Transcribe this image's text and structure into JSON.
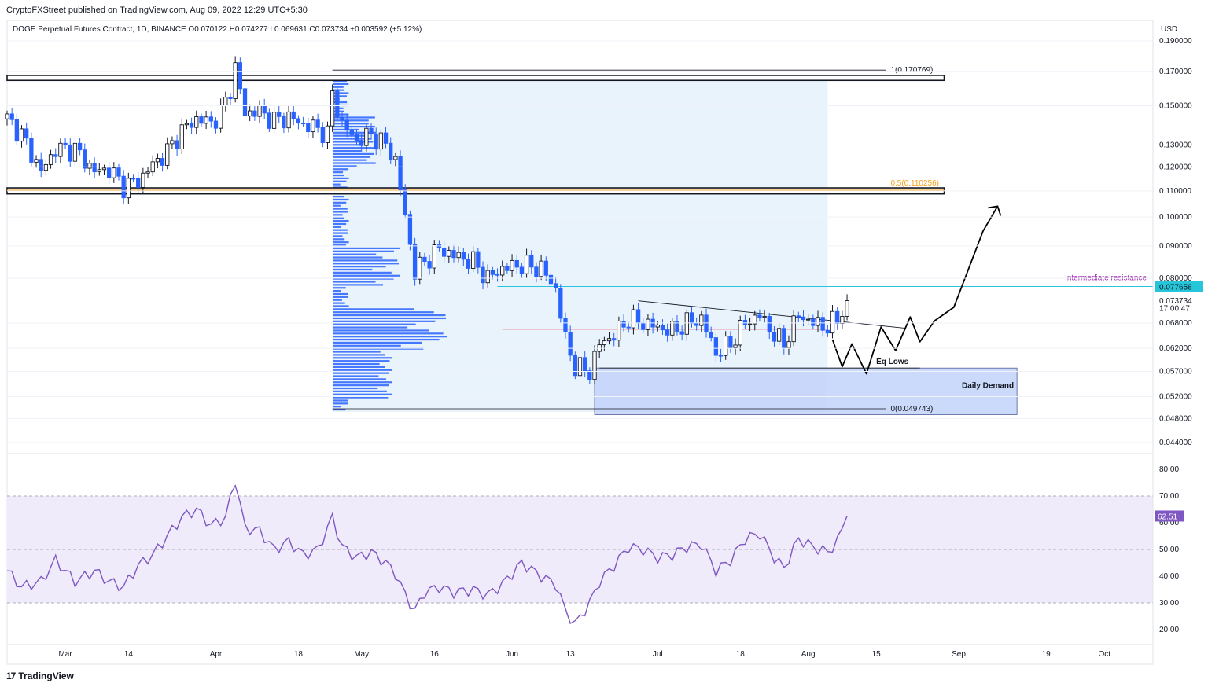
{
  "header": {
    "publisher": "CryptoFXStreet published on TradingView.com, Aug 09, 2022 12:29 UTC+5:30"
  },
  "legend": {
    "text": "DOGE Perpetual Futures Contract, 1D, BINANCE  O0.070122  H0.074277  L0.069631  C0.073734  +0.003592 (+5.12%)"
  },
  "footer": {
    "brand": "TradingView",
    "brand_mark": "17"
  },
  "icons": {
    "brand_icon": "tradingview-logo-icon"
  },
  "colors": {
    "up": "#131722",
    "down": "#2962ff",
    "vp_bar": "#2962ff",
    "vp_area": "#e8f3fc",
    "poc_line": "#f23645",
    "intermediate": "#26c6da",
    "intermediate_label": "#9c27b0",
    "fib_half": "#f7a21b",
    "demand_zone": "#c6d6fa",
    "rsi_line": "#7e57c2",
    "rsi_band": "#f0ebfa",
    "price_tag": "#26c6da",
    "rsi_tag": "#7e57c2"
  },
  "chart_data": [
    {
      "type": "candlestick",
      "symbol": "DOGE Perpetual Futures Contract",
      "interval": "1D",
      "exchange": "BINANCE",
      "ohlc": {
        "open": 0.070122,
        "high": 0.074277,
        "low": 0.069631,
        "close": 0.073734,
        "change": 0.003592,
        "change_pct": "+5.12%"
      },
      "y_axis_unit": "USD",
      "y_ticks": [
        "0.190000",
        "0.170000",
        "0.150000",
        "0.130000",
        "0.120000",
        "0.110000",
        "0.100000",
        "0.090000",
        "0.080000",
        "0.068000",
        "0.062000",
        "0.057000",
        "0.052000",
        "0.048000",
        "0.044000"
      ],
      "ylim": [
        0.0425,
        0.2
      ],
      "scale": "log",
      "x_ticks": [
        {
          "label": "Mar",
          "date": "2022-03-01"
        },
        {
          "label": "14",
          "date": "2022-03-14"
        },
        {
          "label": "Apr",
          "date": "2022-04-01"
        },
        {
          "label": "18",
          "date": "2022-04-18"
        },
        {
          "label": "May",
          "date": "2022-05-01"
        },
        {
          "label": "16",
          "date": "2022-05-16"
        },
        {
          "label": "Jun",
          "date": "2022-06-01"
        },
        {
          "label": "13",
          "date": "2022-06-13"
        },
        {
          "label": "Jul",
          "date": "2022-07-01"
        },
        {
          "label": "18",
          "date": "2022-07-18"
        },
        {
          "label": "Aug",
          "date": "2022-08-01"
        },
        {
          "label": "15",
          "date": "2022-08-15"
        },
        {
          "label": "Sep",
          "date": "2022-09-01"
        },
        {
          "label": "19",
          "date": "2022-09-19"
        },
        {
          "label": "Oct",
          "date": "2022-10-01"
        }
      ],
      "x_range": [
        "2022-02-17",
        "2022-10-11"
      ],
      "price_path": [
        [
          "2022-02-17",
          0.143
        ],
        [
          "2022-02-20",
          0.135
        ],
        [
          "2022-02-24",
          0.118
        ],
        [
          "2022-02-27",
          0.128
        ],
        [
          "2022-03-03",
          0.128
        ],
        [
          "2022-03-07",
          0.118
        ],
        [
          "2022-03-10",
          0.119
        ],
        [
          "2022-03-13",
          0.112
        ],
        [
          "2022-03-16",
          0.114
        ],
        [
          "2022-03-19",
          0.121
        ],
        [
          "2022-03-22",
          0.127
        ],
        [
          "2022-03-25",
          0.137
        ],
        [
          "2022-03-28",
          0.143
        ],
        [
          "2022-03-31",
          0.141
        ],
        [
          "2022-04-02",
          0.146
        ],
        [
          "2022-04-04",
          0.16
        ],
        [
          "2022-04-05",
          0.172
        ],
        [
          "2022-04-07",
          0.146
        ],
        [
          "2022-04-10",
          0.147
        ],
        [
          "2022-04-13",
          0.142
        ],
        [
          "2022-04-16",
          0.144
        ],
        [
          "2022-04-19",
          0.14
        ],
        [
          "2022-04-22",
          0.138
        ],
        [
          "2022-04-24",
          0.135
        ],
        [
          "2022-04-25",
          0.157
        ],
        [
          "2022-04-27",
          0.14
        ],
        [
          "2022-04-30",
          0.132
        ],
        [
          "2022-05-03",
          0.135
        ],
        [
          "2022-05-06",
          0.13
        ],
        [
          "2022-05-08",
          0.123
        ],
        [
          "2022-05-10",
          0.1
        ],
        [
          "2022-05-12",
          0.082
        ],
        [
          "2022-05-14",
          0.085
        ],
        [
          "2022-05-17",
          0.089
        ],
        [
          "2022-05-20",
          0.087
        ],
        [
          "2022-05-24",
          0.085
        ],
        [
          "2022-05-27",
          0.08
        ],
        [
          "2022-05-30",
          0.083
        ],
        [
          "2022-06-03",
          0.084
        ],
        [
          "2022-06-07",
          0.083
        ],
        [
          "2022-06-10",
          0.077
        ],
        [
          "2022-06-12",
          0.064
        ],
        [
          "2022-06-14",
          0.058
        ],
        [
          "2022-06-17",
          0.057
        ],
        [
          "2022-06-19",
          0.063
        ],
        [
          "2022-06-22",
          0.065
        ],
        [
          "2022-06-25",
          0.069
        ],
        [
          "2022-06-28",
          0.068
        ],
        [
          "2022-07-01",
          0.067
        ],
        [
          "2022-07-04",
          0.066
        ],
        [
          "2022-07-07",
          0.068
        ],
        [
          "2022-07-10",
          0.069
        ],
        [
          "2022-07-13",
          0.061
        ],
        [
          "2022-07-16",
          0.063
        ],
        [
          "2022-07-19",
          0.068
        ],
        [
          "2022-07-22",
          0.07
        ],
        [
          "2022-07-25",
          0.065
        ],
        [
          "2022-07-27",
          0.063
        ],
        [
          "2022-07-30",
          0.07
        ],
        [
          "2022-08-02",
          0.068
        ],
        [
          "2022-08-05",
          0.067
        ],
        [
          "2022-08-07",
          0.069
        ],
        [
          "2022-08-09",
          0.073734
        ]
      ],
      "drawings": {
        "fib_1": {
          "label": "1(0.170769)",
          "price": 0.170769
        },
        "fib_half": {
          "label": "0.5(0.110256)",
          "price": 0.110256
        },
        "fib_0": {
          "label": "0(0.049743)",
          "price": 0.049743
        },
        "resistance_zone_top": [
          0.1645,
          0.1675
        ],
        "resistance_zone_mid": [
          0.1088,
          0.1112
        ],
        "intermediate_resistance": {
          "label": "Intermediate resistance",
          "price": 0.077658
        },
        "poc_price": 0.0665,
        "eq_lows": {
          "label": "Eq Lows",
          "price": 0.0577
        },
        "daily_demand": {
          "label": "Daily Demand",
          "top": 0.0577,
          "bottom": 0.0487
        },
        "descending_trendline": [
          [
            "2022-06-27",
            0.0737
          ],
          [
            "2022-08-21",
            0.0667
          ]
        ],
        "projected_path": [
          [
            "2022-08-06",
            0.064
          ],
          [
            "2022-08-08",
            0.058
          ],
          [
            "2022-08-10",
            0.063
          ],
          [
            "2022-08-13",
            0.0565
          ],
          [
            "2022-08-16",
            0.067
          ],
          [
            "2022-08-19",
            0.0615
          ],
          [
            "2022-08-22",
            0.0695
          ],
          [
            "2022-08-24",
            0.0635
          ],
          [
            "2022-08-27",
            0.0685
          ],
          [
            "2022-08-31",
            0.072
          ],
          [
            "2022-09-06",
            0.095
          ],
          [
            "2022-09-09",
            0.104
          ]
        ]
      },
      "price_tags": [
        {
          "label": "0.077658",
          "price": 0.077658,
          "kind": "highlight"
        },
        {
          "label": "0.073734",
          "price": 0.0738,
          "kind": "plain"
        },
        {
          "label": "17:00:47",
          "price": 0.0719,
          "kind": "plain"
        }
      ]
    },
    {
      "type": "line",
      "name": "RSI",
      "y_ticks": [
        "80.00",
        "70.00",
        "60.00",
        "50.00",
        "40.00",
        "30.00",
        "20.00"
      ],
      "ylim": [
        15,
        85
      ],
      "band": [
        30,
        70
      ],
      "current": {
        "label": "62.51",
        "value": 62.51
      },
      "values": [
        [
          "2022-02-17",
          42
        ],
        [
          "2022-02-20",
          36
        ],
        [
          "2022-02-24",
          38
        ],
        [
          "2022-02-27",
          46
        ],
        [
          "2022-03-03",
          38
        ],
        [
          "2022-03-07",
          42
        ],
        [
          "2022-03-10",
          38
        ],
        [
          "2022-03-13",
          36
        ],
        [
          "2022-03-16",
          44
        ],
        [
          "2022-03-19",
          48
        ],
        [
          "2022-03-22",
          55
        ],
        [
          "2022-03-25",
          62
        ],
        [
          "2022-03-28",
          65
        ],
        [
          "2022-03-31",
          59
        ],
        [
          "2022-04-03",
          62
        ],
        [
          "2022-04-05",
          76
        ],
        [
          "2022-04-07",
          58
        ],
        [
          "2022-04-10",
          57
        ],
        [
          "2022-04-13",
          50
        ],
        [
          "2022-04-16",
          53
        ],
        [
          "2022-04-19",
          48
        ],
        [
          "2022-04-22",
          50
        ],
        [
          "2022-04-25",
          62
        ],
        [
          "2022-04-27",
          51
        ],
        [
          "2022-04-30",
          47
        ],
        [
          "2022-05-03",
          49
        ],
        [
          "2022-05-06",
          45
        ],
        [
          "2022-05-08",
          41
        ],
        [
          "2022-05-10",
          33
        ],
        [
          "2022-05-12",
          27
        ],
        [
          "2022-05-14",
          34
        ],
        [
          "2022-05-17",
          36
        ],
        [
          "2022-05-20",
          34
        ],
        [
          "2022-05-24",
          35
        ],
        [
          "2022-05-27",
          33
        ],
        [
          "2022-05-30",
          37
        ],
        [
          "2022-06-03",
          45
        ],
        [
          "2022-06-07",
          40
        ],
        [
          "2022-06-10",
          37
        ],
        [
          "2022-06-12",
          27
        ],
        [
          "2022-06-14",
          22
        ],
        [
          "2022-06-17",
          30
        ],
        [
          "2022-06-19",
          38
        ],
        [
          "2022-06-22",
          44
        ],
        [
          "2022-06-25",
          51
        ],
        [
          "2022-06-28",
          50
        ],
        [
          "2022-07-01",
          47
        ],
        [
          "2022-07-04",
          48
        ],
        [
          "2022-07-07",
          51
        ],
        [
          "2022-07-10",
          52
        ],
        [
          "2022-07-13",
          42
        ],
        [
          "2022-07-16",
          46
        ],
        [
          "2022-07-19",
          54
        ],
        [
          "2022-07-22",
          56
        ],
        [
          "2022-07-25",
          47
        ],
        [
          "2022-07-27",
          43
        ],
        [
          "2022-07-30",
          54
        ],
        [
          "2022-08-02",
          51
        ],
        [
          "2022-08-05",
          49
        ],
        [
          "2022-08-07",
          53
        ],
        [
          "2022-08-09",
          62.51
        ]
      ]
    }
  ]
}
